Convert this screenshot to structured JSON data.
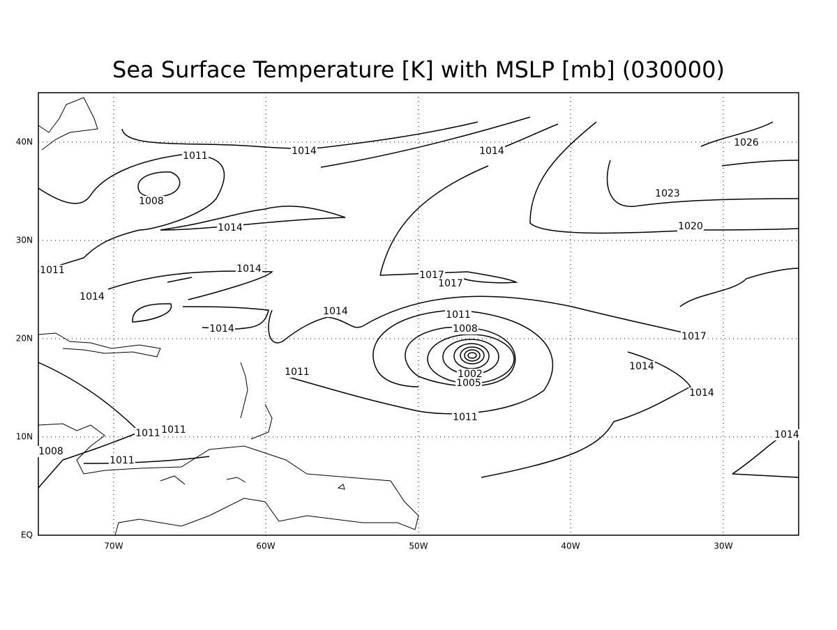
{
  "title": "Sea Surface Temperature [K] with MSLP [mb] (030000)",
  "lon_labels": [
    "70W",
    "60W",
    "50W",
    "40W",
    "30W"
  ],
  "lat_labels": [
    "EQ",
    "10N",
    "20N",
    "30N",
    "40N"
  ],
  "contour_labels": [
    1011,
    1008,
    1014,
    1014,
    1026,
    1023,
    1020,
    1014,
    1011,
    1014,
    1014,
    1017,
    1017,
    1014,
    1014,
    1011,
    1008,
    1017,
    1014,
    1011,
    1002,
    1005,
    1014,
    1011,
    1011,
    1011,
    1014,
    1008,
    1011
  ]
}
